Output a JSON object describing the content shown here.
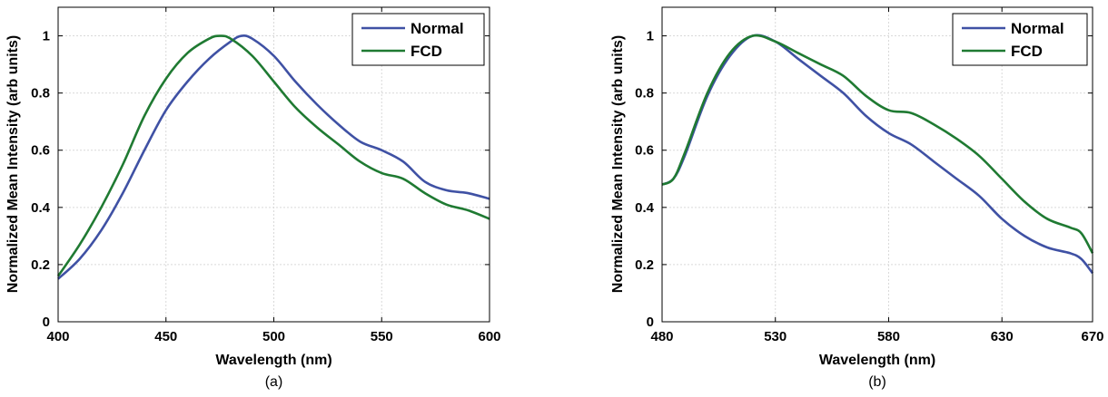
{
  "chart_data": [
    {
      "type": "line",
      "panel_label": "(a)",
      "xlabel": "Wavelength (nm)",
      "ylabel": "Normalized Mean Intensity (arb units)",
      "xlim": [
        400,
        600
      ],
      "ylim": [
        0,
        1.1
      ],
      "xticks": [
        400,
        450,
        500,
        550,
        600
      ],
      "yticks": [
        0,
        0.2,
        0.4,
        0.6,
        0.8,
        1
      ],
      "yticklabels": [
        "0",
        "0.2",
        "0.4",
        "0.6",
        "0.8",
        "1"
      ],
      "grid": true,
      "legend_position": "top-right",
      "series": [
        {
          "name": "Normal",
          "color": "#3f51a4",
          "x": [
            400,
            410,
            420,
            430,
            440,
            450,
            460,
            470,
            480,
            485,
            490,
            500,
            510,
            520,
            530,
            540,
            550,
            560,
            570,
            580,
            590,
            600
          ],
          "y": [
            0.15,
            0.22,
            0.32,
            0.45,
            0.6,
            0.74,
            0.84,
            0.92,
            0.98,
            1.0,
            0.99,
            0.93,
            0.84,
            0.76,
            0.69,
            0.63,
            0.6,
            0.56,
            0.49,
            0.46,
            0.45,
            0.43
          ]
        },
        {
          "name": "FCD",
          "color": "#1f7a32",
          "x": [
            400,
            410,
            420,
            430,
            440,
            450,
            460,
            470,
            475,
            480,
            490,
            500,
            510,
            520,
            530,
            540,
            550,
            560,
            570,
            580,
            590,
            600
          ],
          "y": [
            0.16,
            0.27,
            0.4,
            0.55,
            0.72,
            0.85,
            0.94,
            0.99,
            1.0,
            0.99,
            0.93,
            0.84,
            0.75,
            0.68,
            0.62,
            0.56,
            0.52,
            0.5,
            0.45,
            0.41,
            0.39,
            0.36
          ]
        }
      ]
    },
    {
      "type": "line",
      "panel_label": "(b)",
      "xlabel": "Wavelength (nm)",
      "ylabel": "Normalized Mean Intensity (arb units)",
      "xlim": [
        480,
        670
      ],
      "ylim": [
        0,
        1.1
      ],
      "xticks": [
        480,
        530,
        580,
        630,
        670
      ],
      "yticks": [
        0,
        0.2,
        0.4,
        0.6,
        0.8,
        1
      ],
      "yticklabels": [
        "0",
        "0.2",
        "0.4",
        "0.6",
        "0.8",
        "1"
      ],
      "grid": true,
      "legend_position": "top-right",
      "series": [
        {
          "name": "Normal",
          "color": "#3f51a4",
          "x": [
            480,
            485,
            490,
            500,
            510,
            520,
            530,
            540,
            550,
            560,
            570,
            580,
            590,
            600,
            610,
            620,
            630,
            640,
            650,
            660,
            665,
            670
          ],
          "y": [
            0.48,
            0.5,
            0.58,
            0.79,
            0.93,
            1.0,
            0.98,
            0.92,
            0.86,
            0.8,
            0.72,
            0.66,
            0.62,
            0.56,
            0.5,
            0.44,
            0.36,
            0.3,
            0.26,
            0.24,
            0.22,
            0.17
          ]
        },
        {
          "name": "FCD",
          "color": "#1f7a32",
          "x": [
            480,
            485,
            490,
            500,
            510,
            520,
            530,
            540,
            550,
            560,
            570,
            580,
            590,
            600,
            610,
            620,
            630,
            640,
            650,
            660,
            665,
            670
          ],
          "y": [
            0.48,
            0.5,
            0.59,
            0.8,
            0.94,
            1.0,
            0.98,
            0.94,
            0.9,
            0.86,
            0.79,
            0.74,
            0.73,
            0.69,
            0.64,
            0.58,
            0.5,
            0.42,
            0.36,
            0.33,
            0.31,
            0.24
          ]
        }
      ]
    }
  ]
}
